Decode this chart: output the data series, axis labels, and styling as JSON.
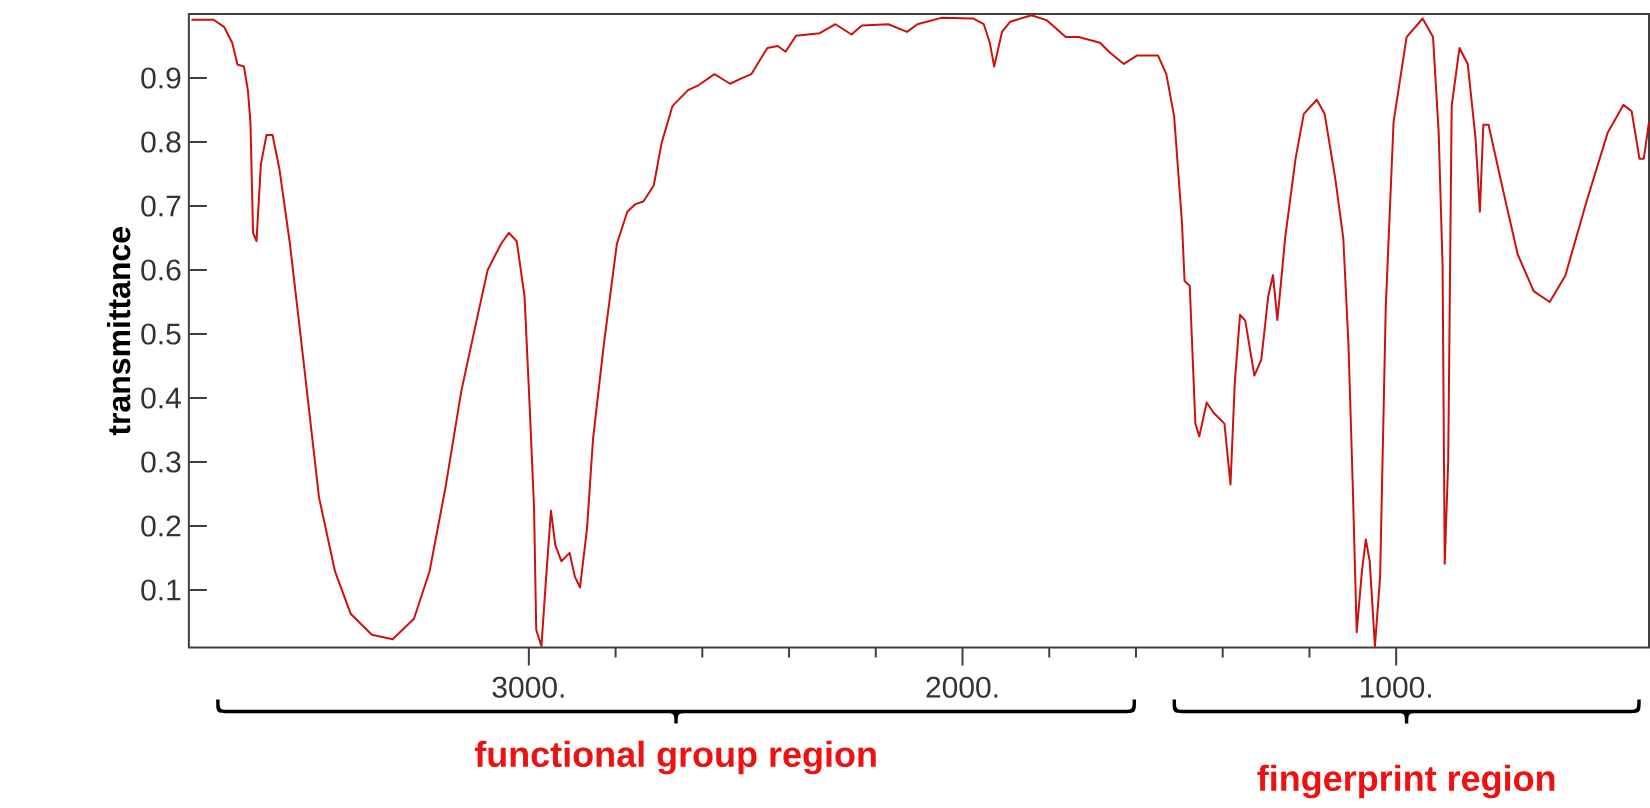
{
  "chart_data": {
    "type": "line",
    "ylabel": "transmittance",
    "xlim": [
      3784,
      417
    ],
    "ylim": [
      0.01,
      1.0
    ],
    "xticks": [
      {
        "value": 3000,
        "label": "3000."
      },
      {
        "value": 2000,
        "label": "2000."
      },
      {
        "value": 1000,
        "label": "1000."
      }
    ],
    "yticks": [
      0.1,
      0.2,
      0.3,
      0.4,
      0.5,
      0.6,
      0.7,
      0.8,
      0.9
    ],
    "grid": false,
    "marker": "none",
    "line_style": "solid",
    "annotations": [
      "functional group region",
      "fingerprint region"
    ],
    "series": [
      {
        "color": "#cc1111",
        "x": [
          3778,
          3727,
          3703,
          3684,
          3672,
          3657,
          3648,
          3642,
          3636,
          3628,
          3618,
          3605,
          3591,
          3575,
          3551,
          3520,
          3484,
          3447,
          3411,
          3362,
          3314,
          3265,
          3229,
          3192,
          3156,
          3119,
          3095,
          3064,
          3046,
          3028,
          3010,
          2998,
          2988,
          2983,
          2971,
          2961,
          2949,
          2939,
          2925,
          2906,
          2894,
          2882,
          2866,
          2852,
          2827,
          2797,
          2773,
          2754,
          2736,
          2712,
          2694,
          2669,
          2633,
          2608,
          2572,
          2536,
          2511,
          2487,
          2450,
          2426,
          2408,
          2384,
          2329,
          2293,
          2256,
          2232,
          2171,
          2128,
          2104,
          2049,
          1976,
          1951,
          1937,
          1927,
          1909,
          1890,
          1841,
          1805,
          1762,
          1732,
          1683,
          1659,
          1628,
          1598,
          1549,
          1530,
          1512,
          1494,
          1488,
          1476,
          1463,
          1454,
          1437,
          1421,
          1396,
          1382,
          1372,
          1360,
          1348,
          1327,
          1311,
          1295,
          1284,
          1274,
          1268,
          1256,
          1232,
          1213,
          1183,
          1165,
          1140,
          1122,
          1110,
          1100,
          1091,
          1079,
          1070,
          1061,
          1049,
          1037,
          1024,
          1006,
          976,
          939,
          915,
          902,
          893,
          888,
          880,
          872,
          854,
          835,
          817,
          807,
          799,
          787,
          756,
          720,
          683,
          646,
          610,
          561,
          512,
          476,
          457,
          439,
          429,
          417
        ],
        "values": [
          0.991,
          0.991,
          0.98,
          0.955,
          0.921,
          0.918,
          0.881,
          0.831,
          0.658,
          0.645,
          0.765,
          0.811,
          0.811,
          0.757,
          0.641,
          0.46,
          0.245,
          0.129,
          0.063,
          0.03,
          0.023,
          0.055,
          0.129,
          0.261,
          0.41,
          0.526,
          0.6,
          0.641,
          0.658,
          0.645,
          0.559,
          0.385,
          0.228,
          0.038,
          0.012,
          0.112,
          0.224,
          0.17,
          0.145,
          0.158,
          0.121,
          0.104,
          0.195,
          0.336,
          0.484,
          0.641,
          0.691,
          0.703,
          0.707,
          0.732,
          0.798,
          0.856,
          0.881,
          0.889,
          0.906,
          0.891,
          0.899,
          0.906,
          0.947,
          0.95,
          0.941,
          0.966,
          0.97,
          0.984,
          0.968,
          0.982,
          0.984,
          0.972,
          0.984,
          0.994,
          0.993,
          0.984,
          0.955,
          0.918,
          0.972,
          0.988,
          0.998,
          0.99,
          0.964,
          0.964,
          0.955,
          0.939,
          0.922,
          0.935,
          0.935,
          0.906,
          0.84,
          0.675,
          0.583,
          0.575,
          0.36,
          0.34,
          0.393,
          0.377,
          0.36,
          0.265,
          0.426,
          0.53,
          0.521,
          0.435,
          0.46,
          0.559,
          0.592,
          0.522,
          0.563,
          0.65,
          0.774,
          0.844,
          0.866,
          0.844,
          0.741,
          0.65,
          0.484,
          0.261,
          0.034,
          0.129,
          0.179,
          0.145,
          0.012,
          0.121,
          0.542,
          0.831,
          0.964,
          0.993,
          0.964,
          0.815,
          0.608,
          0.141,
          0.302,
          0.856,
          0.947,
          0.922,
          0.806,
          0.691,
          0.827,
          0.827,
          0.732,
          0.625,
          0.567,
          0.55,
          0.591,
          0.707,
          0.815,
          0.858,
          0.848,
          0.774,
          0.774,
          0.831
        ]
      }
    ]
  }
}
